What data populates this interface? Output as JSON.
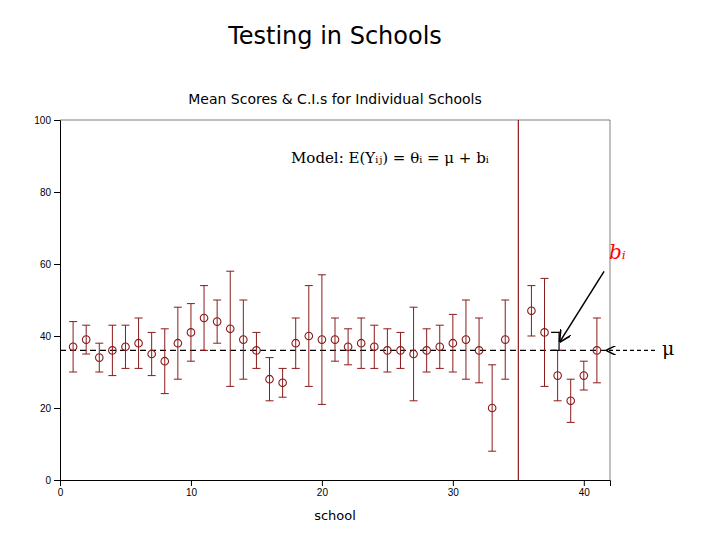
{
  "chart_data": {
    "type": "scatter",
    "title": "Testing in Schools",
    "subtitle": "Mean Scores & C.I.s for Individual Schools",
    "xlabel": "school",
    "x": [
      1,
      2,
      3,
      4,
      5,
      6,
      7,
      8,
      9,
      10,
      11,
      12,
      13,
      14,
      15,
      16,
      17,
      18,
      19,
      20,
      21,
      22,
      23,
      24,
      25,
      26,
      27,
      28,
      29,
      30,
      31,
      32,
      33,
      34,
      36,
      37,
      38,
      39,
      40,
      41
    ],
    "values": [
      37,
      39,
      34,
      36,
      37,
      38,
      35,
      33,
      38,
      41,
      45,
      44,
      42,
      39,
      36,
      28,
      27,
      38,
      40,
      39,
      39,
      37,
      38,
      37,
      36,
      36,
      35,
      36,
      37,
      38,
      39,
      36,
      20,
      39,
      47,
      41,
      29,
      22,
      29,
      36
    ],
    "ci_low": [
      30,
      35,
      30,
      29,
      31,
      31,
      29,
      24,
      28,
      33,
      36,
      38,
      26,
      28,
      31,
      22,
      23,
      31,
      26,
      21,
      33,
      32,
      31,
      31,
      30,
      31,
      22,
      30,
      31,
      30,
      28,
      27,
      8,
      28,
      40,
      26,
      22,
      16,
      25,
      27
    ],
    "ci_high": [
      44,
      43,
      38,
      43,
      43,
      45,
      41,
      42,
      48,
      49,
      54,
      50,
      58,
      50,
      41,
      34,
      31,
      45,
      54,
      57,
      45,
      42,
      45,
      43,
      42,
      41,
      48,
      42,
      43,
      46,
      50,
      45,
      32,
      50,
      54,
      56,
      36,
      28,
      33,
      45
    ],
    "color": "#8B1A1A",
    "marker": "circle",
    "xlim": [
      0,
      42
    ],
    "ylim": [
      0,
      100
    ],
    "xticks": [
      0,
      10,
      20,
      30,
      40
    ],
    "yticks": [
      0,
      20,
      40,
      60,
      80,
      100
    ],
    "grid": false,
    "reference_lines": [
      {
        "axis": "y",
        "value": 36,
        "color": "#000000",
        "line_style": "dashed"
      },
      {
        "axis": "x",
        "value": 35,
        "color": "#8B1A1A",
        "line_style": "solid"
      }
    ],
    "annotations": [
      {
        "text": "Model:  E(Yᵢⱼ) = θᵢ = μ + bᵢ"
      },
      {
        "text": "bᵢ",
        "color": "#ff0000",
        "x": 37.5,
        "y": [
          36,
          41
        ]
      },
      {
        "text": "μ",
        "y": 36
      }
    ]
  }
}
